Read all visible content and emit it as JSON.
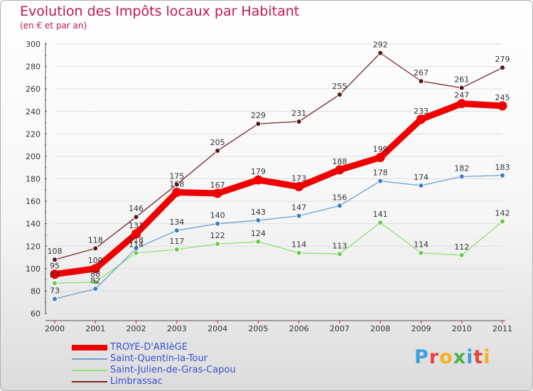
{
  "header": {
    "title": "Evolution des Impôts locaux par Habitant",
    "subtitle": "(en € et par an)"
  },
  "logo": {
    "text": "Proxiti",
    "colors": [
      "#3aa0de",
      "#e9433c",
      "#f5b21e",
      "#4caf50",
      "#3aa0de",
      "#e9433c",
      "#f5b21e"
    ]
  },
  "colors": {
    "grid": "#dddddd",
    "axis": "#555555",
    "tick_mark": "#c0174f"
  },
  "chart_data": {
    "type": "line",
    "title": "Evolution des Impôts locaux par Habitant",
    "subtitle": "(en € et par an)",
    "xlabel": "",
    "ylabel": "",
    "x": [
      "2000",
      "2001",
      "2002",
      "2003",
      "2004",
      "2005",
      "2006",
      "2007",
      "2008",
      "2009",
      "2010",
      "2011"
    ],
    "ylim": [
      60,
      300
    ],
    "yticks": [
      60,
      80,
      100,
      120,
      140,
      160,
      180,
      200,
      220,
      240,
      260,
      280,
      300
    ],
    "grid": "horizontal",
    "legend_position": "bottom-left",
    "series": [
      {
        "name": "Limbrassac",
        "color": "#7a2626",
        "marker": "#5a1414",
        "values": [
          108,
          118,
          146,
          175,
          205,
          229,
          231,
          255,
          292,
          267,
          261,
          279
        ],
        "labels": [
          "108",
          "118",
          "146",
          "175",
          "205",
          "229",
          "231",
          "255",
          "292",
          "267",
          "261",
          "279"
        ]
      },
      {
        "name": "Saint-Julien-de-Gras-Capou",
        "color": "#90e070",
        "marker": "#6cc94c",
        "values": [
          87,
          88,
          114,
          117,
          122,
          124,
          114,
          113,
          141,
          114,
          112,
          142
        ],
        "labels": [
          "87",
          "88",
          "114",
          "117",
          "122",
          "124",
          "114",
          "113",
          "141",
          "114",
          "112",
          "142"
        ]
      },
      {
        "name": "Saint-Quentin-la-Tour",
        "color": "#6a9fd0",
        "marker": "#3c7fc0",
        "values": [
          73,
          82,
          118,
          134,
          140,
          143,
          147,
          156,
          178,
          174,
          182,
          183
        ],
        "labels": [
          "73",
          "82",
          "118",
          "134",
          "140",
          "143",
          "147",
          "156",
          "178",
          "174",
          "182",
          "183"
        ]
      },
      {
        "name": "TROYE-D'ARIèGE",
        "color": "#ee0000",
        "marker": "#ee0000",
        "values": [
          95,
          100,
          131,
          168,
          167,
          179,
          173,
          188,
          199,
          233,
          247,
          245
        ],
        "labels": [
          "95",
          "100",
          "131",
          "168",
          "167",
          "179",
          "173",
          "188",
          "199",
          "233",
          "247",
          "245"
        ]
      }
    ],
    "legend": [
      "TROYE-D'ARIèGE",
      "Saint-Quentin-la-Tour",
      "Saint-Julien-de-Gras-Capou",
      "Limbrassac"
    ]
  }
}
